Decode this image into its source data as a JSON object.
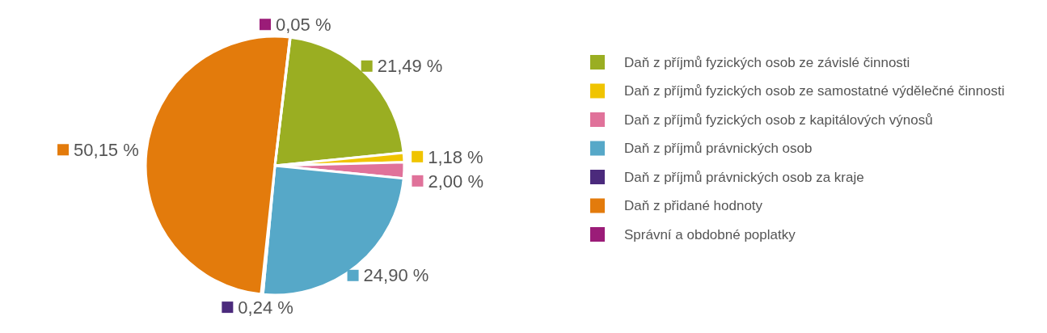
{
  "chart_data": {
    "type": "pie",
    "categories": [
      "Daň z příjmů fyzických osob ze závislé činnosti",
      "Daň z příjmů fyzických osob ze samostatné výdělečné činnosti",
      "Daň z příjmů fyzických osob z kapitálových výnosů",
      "Daň z příjmů právnických osob",
      "Daň z příjmů právnických osob za kraje",
      "Daň z přidané hodnoty",
      "Správní a obdobné poplatky"
    ],
    "values": [
      21.49,
      1.18,
      2.0,
      24.9,
      0.24,
      50.15,
      0.05
    ],
    "value_labels": [
      "21,49 %",
      "1,18 %",
      "2,00 %",
      "24,90 %",
      "0,24 %",
      "50,15 %",
      "0,05 %"
    ],
    "colors": [
      "#9aae22",
      "#f0c400",
      "#e0729a",
      "#56a8c8",
      "#4b2a7c",
      "#e37b0c",
      "#9b1c78"
    ],
    "legend": "right"
  }
}
